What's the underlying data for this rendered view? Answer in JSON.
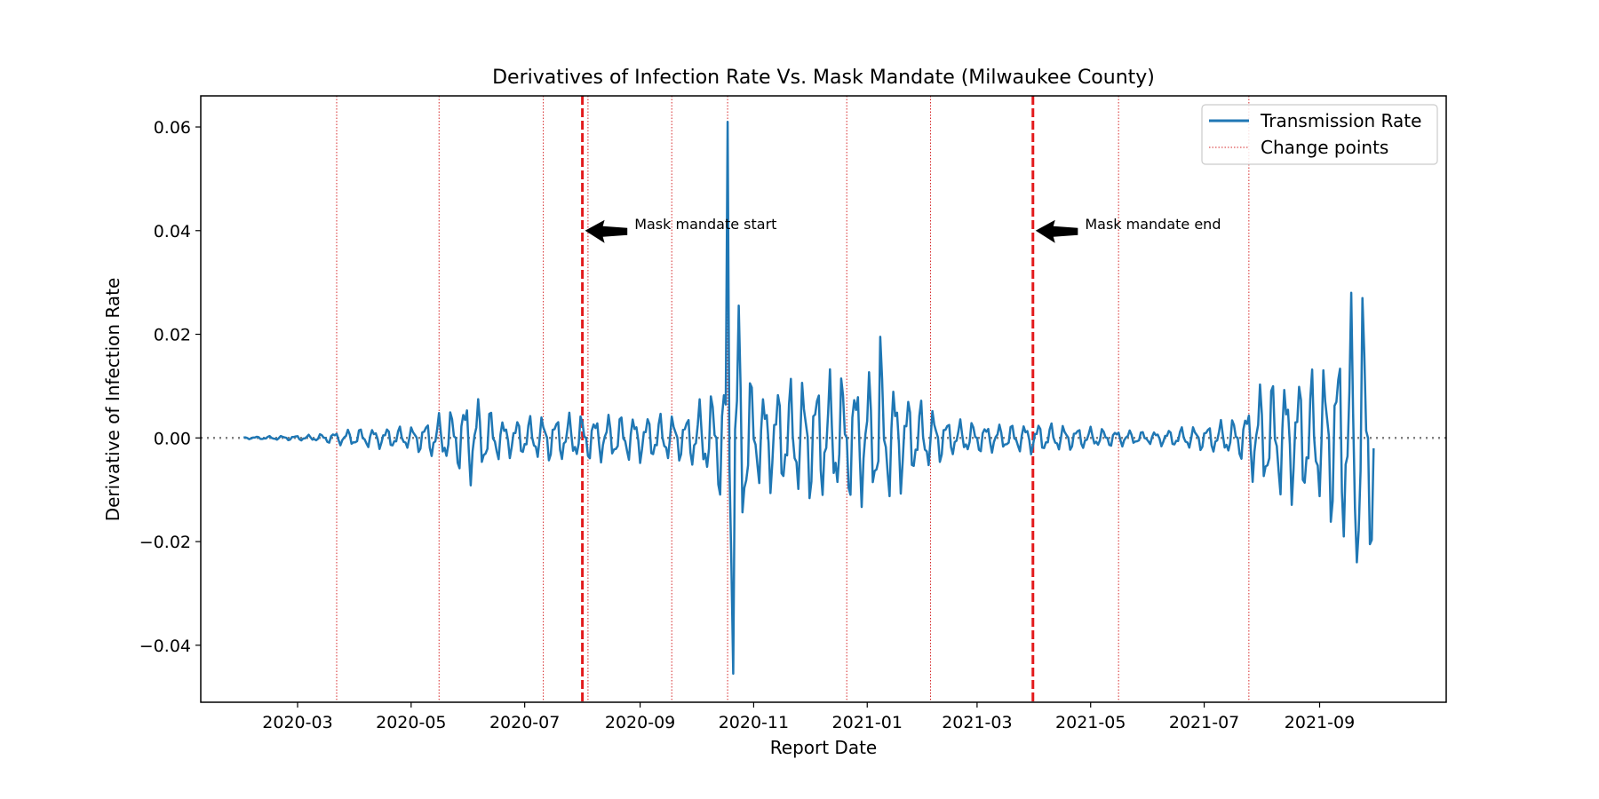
{
  "chart_data": {
    "type": "line",
    "title": "Derivatives of Infection Rate Vs. Mask Mandate (Milwaukee County)",
    "xlabel": "Report Date",
    "ylabel": "Derivative of Infection Rate",
    "xlim": [
      "2020-01-09",
      "2021-11-08"
    ],
    "ylim": [
      -0.051,
      0.066
    ],
    "x_ticks": [
      "2020-03",
      "2020-05",
      "2020-07",
      "2020-09",
      "2020-11",
      "2021-01",
      "2021-03",
      "2021-05",
      "2021-07",
      "2021-09"
    ],
    "y_ticks": [
      0.06,
      0.04,
      0.02,
      0.0,
      -0.02,
      -0.04
    ],
    "y_tick_labels": [
      "0.06",
      "0.04",
      "0.02",
      "0.00",
      "−0.02",
      "−0.04"
    ],
    "zero_line": 0.0,
    "grid": false,
    "legend": {
      "position": "top-right",
      "entries": [
        "Transmission Rate",
        "Change points"
      ]
    },
    "series": [
      {
        "name": "Transmission Rate",
        "color": "#1f77b4",
        "x_start": "2020-02-01",
        "x_end": "2021-09-30",
        "envelope": [
          [
            "2020-02-01",
            0.0002
          ],
          [
            "2020-03-10",
            0.0006
          ],
          [
            "2020-04-01",
            0.0018
          ],
          [
            "2020-05-01",
            0.0022
          ],
          [
            "2020-05-25",
            0.0058
          ],
          [
            "2020-06-01",
            0.009
          ],
          [
            "2020-06-20",
            0.0035
          ],
          [
            "2020-07-15",
            0.0045
          ],
          [
            "2020-08-01",
            0.0045
          ],
          [
            "2020-09-01",
            0.0045
          ],
          [
            "2020-09-25",
            0.0045
          ],
          [
            "2020-10-10",
            0.009
          ],
          [
            "2020-10-18",
            0.016
          ],
          [
            "2020-10-22",
            0.03
          ],
          [
            "2020-11-01",
            0.009
          ],
          [
            "2020-12-01",
            0.012
          ],
          [
            "2021-01-10",
            0.013
          ],
          [
            "2021-01-25",
            0.008
          ],
          [
            "2021-02-15",
            0.0035
          ],
          [
            "2021-03-15",
            0.0025
          ],
          [
            "2021-04-01",
            0.003
          ],
          [
            "2021-05-01",
            0.002
          ],
          [
            "2021-06-01",
            0.0012
          ],
          [
            "2021-07-01",
            0.0025
          ],
          [
            "2021-07-20",
            0.004
          ],
          [
            "2021-08-01",
            0.011
          ],
          [
            "2021-09-01",
            0.013
          ],
          [
            "2021-09-22",
            0.026
          ],
          [
            "2021-09-30",
            0.022
          ]
        ],
        "highlights": [
          [
            "2020-10-18",
            0.061
          ],
          [
            "2020-10-21",
            -0.0455
          ],
          [
            "2021-01-08",
            0.0195
          ],
          [
            "2021-09-18",
            0.028
          ],
          [
            "2021-09-21",
            -0.024
          ],
          [
            "2021-09-24",
            0.027
          ],
          [
            "2021-09-28",
            -0.0205
          ],
          [
            "2021-09-30",
            -0.002
          ]
        ]
      }
    ],
    "change_points": [
      "2020-03-22",
      "2020-05-16",
      "2020-07-11",
      "2020-08-04",
      "2020-09-18",
      "2020-10-18",
      "2020-12-21",
      "2021-02-04",
      "2021-05-16",
      "2021-07-25"
    ],
    "mandate_lines": [
      "2020-08-01",
      "2021-03-31"
    ],
    "annotations": [
      {
        "text": "Mask mandate start",
        "x": "2020-08-01",
        "y": 0.04,
        "text_x": "2020-08-28",
        "text_y": 0.04
      },
      {
        "text": "Mask mandate end",
        "x": "2021-03-31",
        "y": 0.04,
        "text_x": "2021-04-27",
        "text_y": 0.04
      }
    ]
  }
}
